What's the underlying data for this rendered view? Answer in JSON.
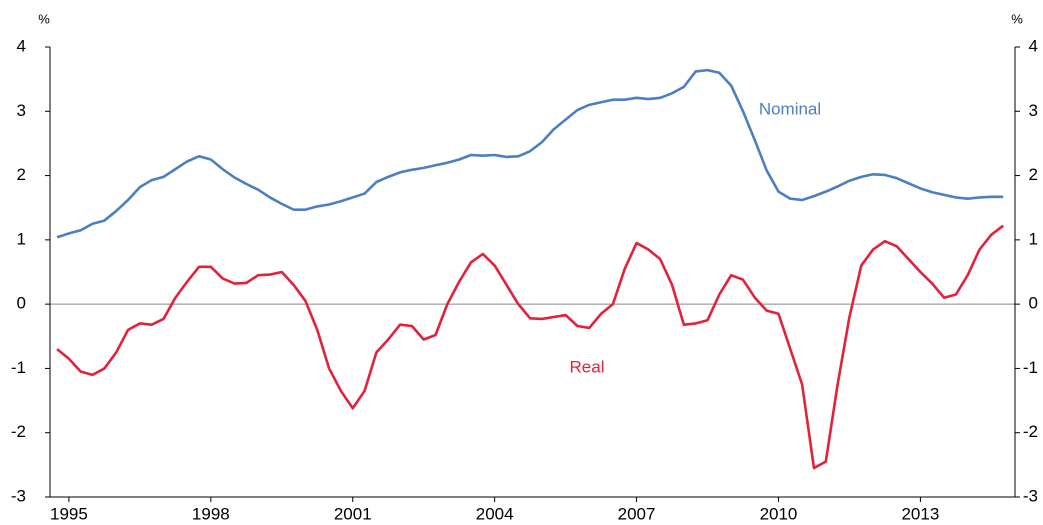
{
  "chart_data": {
    "type": "line",
    "y_unit": "%",
    "y2_unit": "%",
    "x": [
      1994.75,
      1995,
      1995.25,
      1995.5,
      1995.75,
      1996,
      1996.25,
      1996.5,
      1996.75,
      1997,
      1997.25,
      1997.5,
      1997.75,
      1998,
      1998.25,
      1998.5,
      1998.75,
      1999,
      1999.25,
      1999.5,
      1999.75,
      2000,
      2000.25,
      2000.5,
      2000.75,
      2001,
      2001.25,
      2001.5,
      2001.75,
      2002,
      2002.25,
      2002.5,
      2002.75,
      2003,
      2003.25,
      2003.5,
      2003.75,
      2004,
      2004.25,
      2004.5,
      2004.75,
      2005,
      2005.25,
      2005.5,
      2005.75,
      2006,
      2006.25,
      2006.5,
      2006.75,
      2007,
      2007.25,
      2007.5,
      2007.75,
      2008,
      2008.25,
      2008.5,
      2008.75,
      2009,
      2009.25,
      2009.5,
      2009.75,
      2010,
      2010.25,
      2010.5,
      2010.75,
      2011,
      2011.25,
      2011.5,
      2011.75,
      2012,
      2012.25,
      2012.5,
      2012.75,
      2013,
      2013.25,
      2013.5,
      2013.75,
      2014,
      2014.25,
      2014.5,
      2014.75
    ],
    "series": [
      {
        "name": "Nominal",
        "color": "#4a7fc1",
        "values": [
          1.04,
          1.1,
          1.15,
          1.25,
          1.3,
          1.45,
          1.62,
          1.82,
          1.93,
          1.98,
          2.1,
          2.22,
          2.3,
          2.25,
          2.1,
          1.97,
          1.87,
          1.78,
          1.66,
          1.56,
          1.47,
          1.47,
          1.52,
          1.55,
          1.6,
          1.66,
          1.72,
          1.9,
          1.98,
          2.05,
          2.09,
          2.12,
          2.16,
          2.2,
          2.25,
          2.32,
          2.31,
          2.32,
          2.29,
          2.3,
          2.38,
          2.52,
          2.72,
          2.87,
          3.02,
          3.1,
          3.14,
          3.18,
          3.18,
          3.21,
          3.19,
          3.21,
          3.28,
          3.38,
          3.62,
          3.64,
          3.6,
          3.4,
          3.0,
          2.55,
          2.08,
          1.75,
          1.64,
          1.62,
          1.68,
          1.75,
          1.83,
          1.92,
          1.98,
          2.02,
          2.01,
          1.96,
          1.88,
          1.8,
          1.74,
          1.7,
          1.66,
          1.64,
          1.66,
          1.67,
          1.67
        ]
      },
      {
        "name": "Real",
        "color": "#e2213b",
        "values": [
          -0.7,
          -0.85,
          -1.05,
          -1.1,
          -1.0,
          -0.75,
          -0.4,
          -0.3,
          -0.32,
          -0.23,
          0.1,
          0.35,
          0.58,
          0.58,
          0.4,
          0.32,
          0.33,
          0.45,
          0.46,
          0.5,
          0.3,
          0.05,
          -0.4,
          -1.0,
          -1.35,
          -1.62,
          -1.35,
          -0.75,
          -0.55,
          -0.32,
          -0.34,
          -0.55,
          -0.48,
          0.0,
          0.35,
          0.65,
          0.78,
          0.6,
          0.3,
          0.0,
          -0.22,
          -0.23,
          -0.2,
          -0.17,
          -0.34,
          -0.37,
          -0.15,
          0.0,
          0.55,
          0.95,
          0.85,
          0.7,
          0.3,
          -0.32,
          -0.3,
          -0.25,
          0.15,
          0.45,
          0.38,
          0.1,
          -0.1,
          -0.15,
          -0.7,
          -1.25,
          -2.55,
          -2.45,
          -1.25,
          -0.2,
          0.6,
          0.85,
          0.98,
          0.9,
          0.7,
          0.5,
          0.32,
          0.1,
          0.15,
          0.45,
          0.85,
          1.08,
          1.22
        ]
      }
    ],
    "xlim": [
      1994.6,
      2015
    ],
    "xticks": [
      1995,
      1998,
      2001,
      2004,
      2007,
      2010,
      2013
    ],
    "ylim": [
      -3,
      4
    ],
    "yticks": [
      -3,
      -2,
      -1,
      0,
      1,
      2,
      3,
      4
    ],
    "y2lim": [
      -3,
      4
    ],
    "y2ticks": [
      -3,
      -2,
      -1,
      0,
      1,
      2,
      3,
      4
    ]
  }
}
